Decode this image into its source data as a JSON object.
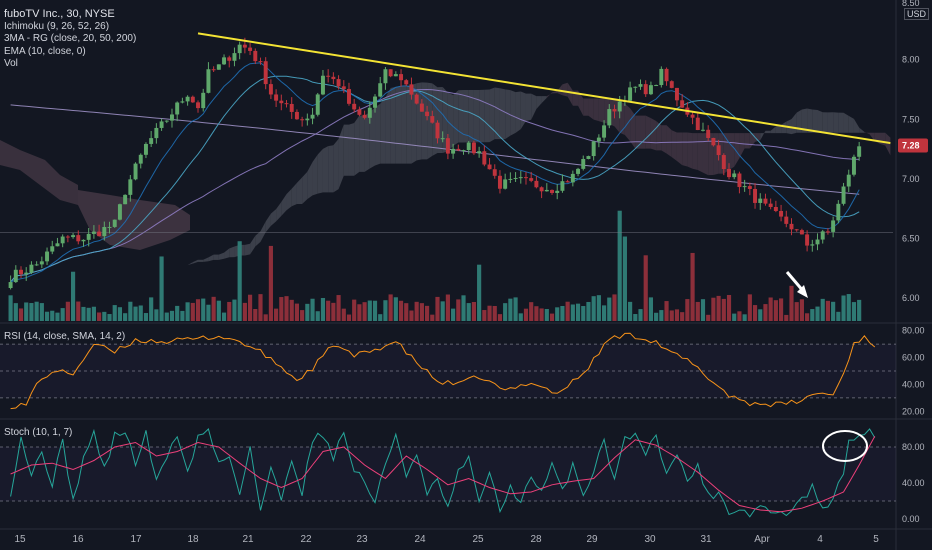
{
  "header": {
    "title": "fuboTV Inc., 30, NYSE",
    "indicators": [
      "Ichimoku (9, 26, 52, 26)",
      "3MA - RG (close, 20, 50, 200)",
      "EMA (10, close, 0)",
      "Vol"
    ],
    "currency": "USD",
    "top_tick": "8.50"
  },
  "colors": {
    "background": "#131722",
    "up": "#5fa86b",
    "down": "#c0343d",
    "trendline": "#f4e434",
    "rsi": "#f7931a",
    "stoch_k": "#26a69a",
    "stoch_d": "#ec407a",
    "price_badge": "#c0343d"
  },
  "chart_data": [
    {
      "type": "candlestick",
      "pane": "price",
      "title": "fuboTV Inc., 30, NYSE",
      "ylim": [
        5.8,
        8.5
      ],
      "yticks": [
        "8.00",
        "7.50",
        "7.00",
        "6.50",
        "6.00"
      ],
      "xticks": [
        "15",
        "16",
        "17",
        "18",
        "21",
        "22",
        "23",
        "24",
        "25",
        "28",
        "29",
        "30",
        "31",
        "Apr",
        "4",
        "5"
      ],
      "last_price": "7.28",
      "close_path": [
        [
          0,
          6.18
        ],
        [
          5,
          6.28
        ],
        [
          10,
          6.5
        ],
        [
          14,
          6.5
        ],
        [
          20,
          6.62
        ],
        [
          22,
          6.9
        ],
        [
          26,
          7.28
        ],
        [
          30,
          7.5
        ],
        [
          34,
          7.72
        ],
        [
          36,
          7.6
        ],
        [
          38,
          7.88
        ],
        [
          40,
          7.94
        ],
        [
          44,
          8.12
        ],
        [
          46,
          8.08
        ],
        [
          48,
          7.95
        ],
        [
          50,
          7.72
        ],
        [
          52,
          7.62
        ],
        [
          54,
          7.56
        ],
        [
          56,
          7.5
        ],
        [
          58,
          7.55
        ],
        [
          60,
          7.88
        ],
        [
          63,
          7.8
        ],
        [
          66,
          7.55
        ],
        [
          68,
          7.5
        ],
        [
          72,
          7.88
        ],
        [
          75,
          7.85
        ],
        [
          77,
          7.72
        ],
        [
          80,
          7.5
        ],
        [
          84,
          7.25
        ],
        [
          87,
          7.28
        ],
        [
          90,
          7.22
        ],
        [
          94,
          6.95
        ],
        [
          98,
          6.98
        ],
        [
          104,
          6.92
        ],
        [
          108,
          7.02
        ],
        [
          112,
          7.28
        ],
        [
          115,
          7.55
        ],
        [
          118,
          7.7
        ],
        [
          120,
          7.76
        ],
        [
          123,
          7.75
        ],
        [
          125,
          7.88
        ],
        [
          128,
          7.68
        ],
        [
          132,
          7.45
        ],
        [
          136,
          7.2
        ],
        [
          138,
          7.05
        ],
        [
          142,
          6.88
        ],
        [
          146,
          6.72
        ],
        [
          150,
          6.6
        ],
        [
          153,
          6.45
        ],
        [
          157,
          6.55
        ],
        [
          159,
          6.78
        ],
        [
          161,
          7.05
        ],
        [
          163,
          7.28
        ]
      ],
      "volume": {
        "ylim": [
          0,
          0.75
        ],
        "spikes": [
          [
            12,
            0.42
          ],
          [
            29,
            0.55
          ],
          [
            44,
            0.68
          ],
          [
            50,
            0.64
          ],
          [
            90,
            0.48
          ],
          [
            117,
            0.94
          ],
          [
            118,
            0.72
          ],
          [
            122,
            0.56
          ],
          [
            131,
            0.58
          ],
          [
            150,
            0.3
          ]
        ]
      },
      "trendline": {
        "from": [
          36,
          8.22
        ],
        "to": [
          169,
          7.3
        ]
      },
      "annotations": [
        "white arrow pointing down-right",
        "support line at 6.55"
      ]
    },
    {
      "type": "line",
      "pane": "rsi",
      "title": "RSI (14, close, SMA, 14, 2)",
      "ylim": [
        15,
        85
      ],
      "yticks": [
        "80.00",
        "60.00",
        "40.00",
        "20.00"
      ],
      "bands": [
        70,
        50,
        30
      ],
      "series": [
        {
          "name": "",
          "points": [
            [
              0,
              24
            ],
            [
              3,
              25
            ],
            [
              5,
              40
            ],
            [
              8,
              50
            ],
            [
              12,
              48
            ],
            [
              16,
              70
            ],
            [
              20,
              64
            ],
            [
              24,
              73
            ],
            [
              30,
              72
            ],
            [
              36,
              74
            ],
            [
              40,
              76
            ],
            [
              44,
              72
            ],
            [
              48,
              64
            ],
            [
              52,
              53
            ],
            [
              55,
              43
            ],
            [
              58,
              52
            ],
            [
              62,
              70
            ],
            [
              66,
              61
            ],
            [
              70,
              66
            ],
            [
              74,
              72
            ],
            [
              77,
              60
            ],
            [
              82,
              42
            ],
            [
              86,
              40
            ],
            [
              90,
              46
            ],
            [
              95,
              35
            ],
            [
              100,
              42
            ],
            [
              105,
              33
            ],
            [
              110,
              48
            ],
            [
              115,
              74
            ],
            [
              118,
              77
            ],
            [
              120,
              76
            ],
            [
              124,
              72
            ],
            [
              126,
              65
            ],
            [
              130,
              58
            ],
            [
              134,
              45
            ],
            [
              138,
              32
            ],
            [
              142,
              26
            ],
            [
              148,
              25
            ],
            [
              152,
              28
            ],
            [
              155,
              34
            ],
            [
              158,
              32
            ],
            [
              160,
              48
            ],
            [
              162,
              71
            ],
            [
              164,
              75
            ],
            [
              166,
              69
            ]
          ]
        }
      ]
    },
    {
      "type": "line",
      "pane": "stoch",
      "title": "Stoch (10, 1, 7)",
      "ylim": [
        -10,
        110
      ],
      "yticks": [
        "80.00",
        "40.00",
        "0.00"
      ],
      "bands": [
        80,
        20
      ],
      "series": [
        {
          "name": "",
          "points": [
            [
              0,
              30
            ],
            [
              2,
              92
            ],
            [
              4,
              48
            ],
            [
              6,
              75
            ],
            [
              8,
              40
            ],
            [
              10,
              85
            ],
            [
              12,
              20
            ],
            [
              14,
              68
            ],
            [
              16,
              95
            ],
            [
              18,
              55
            ],
            [
              20,
              92
            ],
            [
              22,
              98
            ],
            [
              24,
              62
            ],
            [
              26,
              95
            ],
            [
              28,
              40
            ],
            [
              30,
              70
            ],
            [
              32,
              95
            ],
            [
              34,
              50
            ],
            [
              36,
              92
            ],
            [
              38,
              98
            ],
            [
              40,
              62
            ],
            [
              42,
              70
            ],
            [
              44,
              30
            ],
            [
              46,
              80
            ],
            [
              48,
              10
            ],
            [
              50,
              55
            ],
            [
              52,
              22
            ],
            [
              54,
              68
            ],
            [
              56,
              30
            ],
            [
              58,
              88
            ],
            [
              60,
              95
            ],
            [
              62,
              70
            ],
            [
              64,
              95
            ],
            [
              66,
              55
            ],
            [
              68,
              42
            ],
            [
              70,
              18
            ],
            [
              72,
              60
            ],
            [
              74,
              95
            ],
            [
              76,
              50
            ],
            [
              78,
              70
            ],
            [
              80,
              25
            ],
            [
              82,
              45
            ],
            [
              84,
              10
            ],
            [
              86,
              52
            ],
            [
              88,
              65
            ],
            [
              90,
              22
            ],
            [
              92,
              48
            ],
            [
              94,
              10
            ],
            [
              96,
              35
            ],
            [
              98,
              20
            ],
            [
              100,
              45
            ],
            [
              102,
              28
            ],
            [
              104,
              60
            ],
            [
              106,
              30
            ],
            [
              108,
              62
            ],
            [
              110,
              25
            ],
            [
              112,
              55
            ],
            [
              114,
              90
            ],
            [
              116,
              40
            ],
            [
              118,
              95
            ],
            [
              120,
              92
            ],
            [
              122,
              75
            ],
            [
              124,
              90
            ],
            [
              126,
              55
            ],
            [
              128,
              70
            ],
            [
              130,
              42
            ],
            [
              132,
              60
            ],
            [
              134,
              25
            ],
            [
              136,
              30
            ],
            [
              138,
              8
            ],
            [
              140,
              12
            ],
            [
              142,
              5
            ],
            [
              144,
              15
            ],
            [
              146,
              8
            ],
            [
              148,
              5
            ],
            [
              150,
              10
            ],
            [
              152,
              20
            ],
            [
              154,
              35
            ],
            [
              156,
              8
            ],
            [
              158,
              25
            ],
            [
              160,
              48
            ],
            [
              161,
              85
            ],
            [
              162,
              92
            ],
            [
              163,
              95
            ],
            [
              164,
              90
            ],
            [
              165,
              98
            ],
            [
              166,
              93
            ]
          ]
        },
        {
          "name": "",
          "points": [
            [
              0,
              50
            ],
            [
              4,
              60
            ],
            [
              8,
              62
            ],
            [
              12,
              55
            ],
            [
              16,
              65
            ],
            [
              20,
              80
            ],
            [
              24,
              85
            ],
            [
              28,
              70
            ],
            [
              32,
              75
            ],
            [
              36,
              85
            ],
            [
              40,
              80
            ],
            [
              44,
              62
            ],
            [
              48,
              45
            ],
            [
              52,
              35
            ],
            [
              56,
              45
            ],
            [
              60,
              75
            ],
            [
              64,
              80
            ],
            [
              68,
              60
            ],
            [
              72,
              45
            ],
            [
              76,
              70
            ],
            [
              80,
              55
            ],
            [
              84,
              38
            ],
            [
              88,
              45
            ],
            [
              92,
              35
            ],
            [
              96,
              28
            ],
            [
              100,
              30
            ],
            [
              104,
              38
            ],
            [
              108,
              42
            ],
            [
              112,
              45
            ],
            [
              116,
              68
            ],
            [
              120,
              88
            ],
            [
              124,
              82
            ],
            [
              128,
              68
            ],
            [
              132,
              52
            ],
            [
              136,
              32
            ],
            [
              140,
              15
            ],
            [
              144,
              10
            ],
            [
              148,
              8
            ],
            [
              152,
              12
            ],
            [
              156,
              20
            ],
            [
              160,
              30
            ],
            [
              163,
              60
            ],
            [
              166,
              92
            ]
          ]
        }
      ],
      "annotations": [
        "white ellipse highlight on overbought zone"
      ]
    }
  ]
}
